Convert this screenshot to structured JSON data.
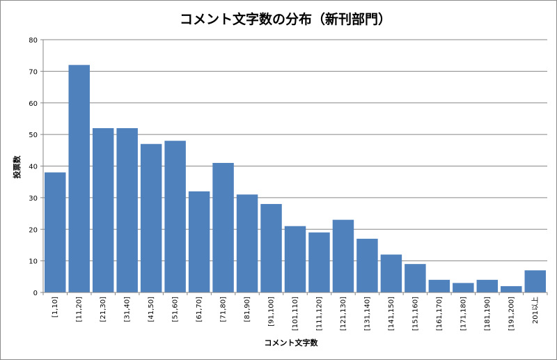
{
  "chart_data": {
    "type": "bar",
    "title": "コメント文字数の分布（新刊部門）",
    "xlabel": "コメント文字数",
    "ylabel": "投票数",
    "ylim": [
      0,
      80
    ],
    "yticks": [
      "0",
      "10",
      "20",
      "30",
      "40",
      "50",
      "60",
      "70",
      "80"
    ],
    "grid": true,
    "legend": "none",
    "bar_color": "#4F81BD",
    "categories": [
      "[1,10]",
      "[11,20]",
      "[21,30]",
      "[31,40]",
      "[41,50]",
      "[51,60]",
      "[61,70]",
      "[71,80]",
      "[81,90]",
      "[91,100]",
      "[101,110]",
      "[111,120]",
      "[121,130]",
      "[131,140]",
      "[141,150]",
      "[151,160]",
      "[161,170]",
      "[171,180]",
      "[181,190]",
      "[191,200]",
      "201以上"
    ],
    "values": [
      38,
      72,
      52,
      52,
      47,
      48,
      32,
      41,
      31,
      28,
      21,
      19,
      23,
      17,
      12,
      9,
      4,
      3,
      4,
      2,
      7
    ]
  }
}
